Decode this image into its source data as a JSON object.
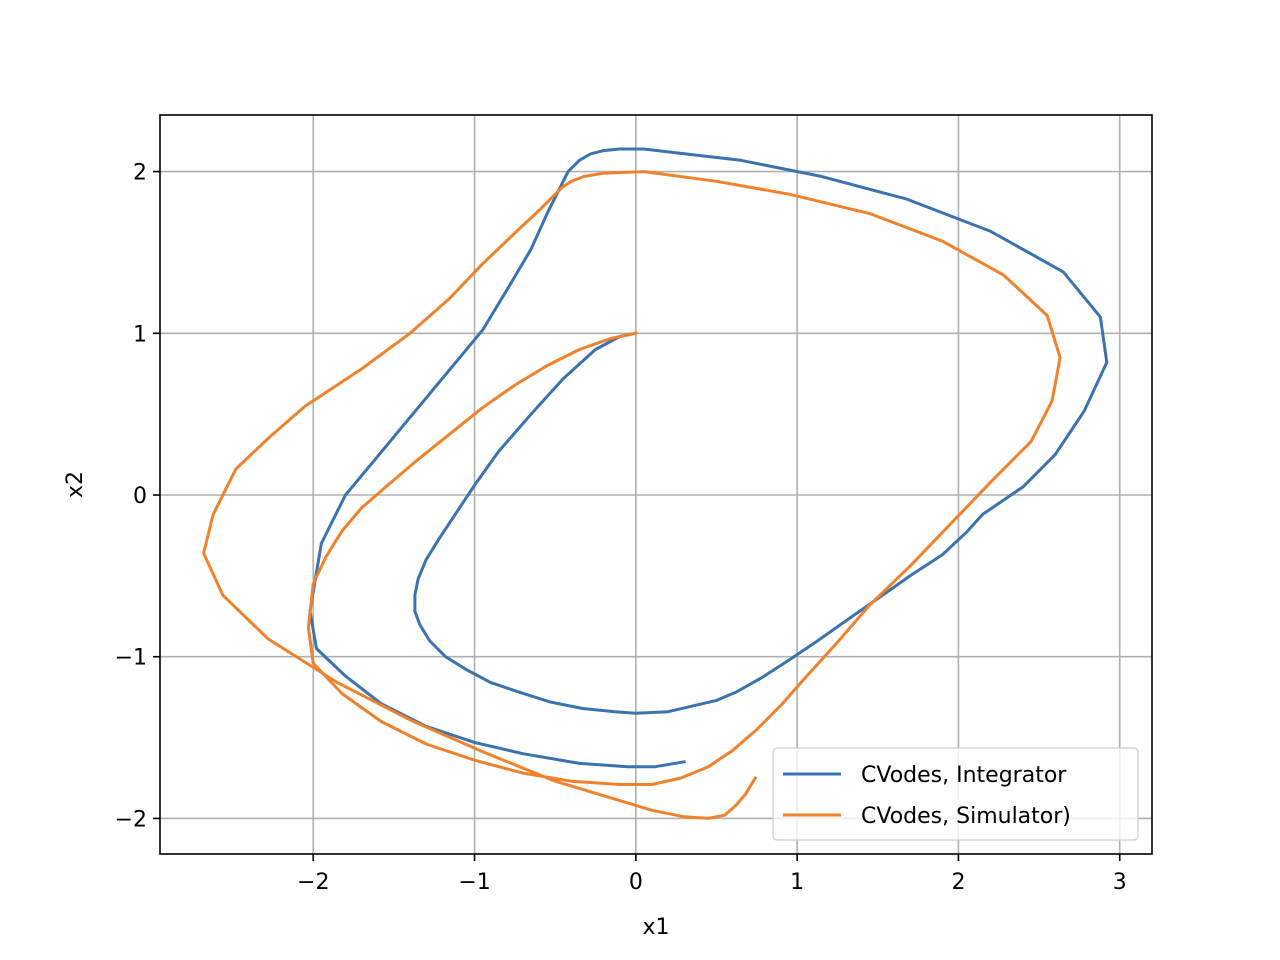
{
  "chart_data": {
    "type": "line",
    "title": "",
    "xlabel": "x1",
    "ylabel": "x2",
    "xlim": [
      -2.95,
      3.2
    ],
    "ylim": [
      -2.22,
      2.35
    ],
    "x_ticks": [
      -2,
      -1,
      0,
      1,
      2,
      3
    ],
    "x_tick_labels": [
      "−2",
      "−1",
      "0",
      "1",
      "2",
      "3"
    ],
    "y_ticks": [
      -2,
      -1,
      0,
      1,
      2
    ],
    "y_tick_labels": [
      "−2",
      "−1",
      "0",
      "1",
      "2"
    ],
    "grid": true,
    "legend_position": "lower-right",
    "series": [
      {
        "name": "CVodes, Integrator",
        "color": "#3b73b0",
        "x": [
          0.0,
          -0.1,
          -0.25,
          -0.45,
          -0.65,
          -0.85,
          -1.0,
          -1.12,
          -1.22,
          -1.3,
          -1.35,
          -1.37,
          -1.37,
          -1.34,
          -1.28,
          -1.18,
          -1.05,
          -0.9,
          -0.72,
          -0.53,
          -0.33,
          -0.13,
          0.0,
          0.2,
          0.5,
          0.62,
          0.78,
          0.95,
          1.1,
          1.3,
          1.5,
          1.7,
          1.9,
          2.05,
          2.15,
          2.4,
          2.6,
          2.78,
          2.92,
          2.88,
          2.65,
          2.2,
          1.68,
          1.15,
          0.65,
          0.3,
          0.05,
          -0.1,
          -0.2,
          -0.28,
          -0.35,
          -0.42,
          -0.47,
          -0.55,
          -0.65,
          -0.78,
          -0.95,
          -1.15,
          -1.4,
          -1.6,
          -1.8,
          -1.95,
          -2.02,
          -1.98,
          -1.8,
          -1.58,
          -1.3,
          -1.0,
          -0.7,
          -0.35,
          -0.05,
          0.12,
          0.3
        ],
        "y": [
          1.0,
          0.98,
          0.9,
          0.72,
          0.5,
          0.27,
          0.06,
          -0.12,
          -0.27,
          -0.4,
          -0.52,
          -0.62,
          -0.72,
          -0.8,
          -0.9,
          -1.0,
          -1.08,
          -1.16,
          -1.22,
          -1.28,
          -1.32,
          -1.34,
          -1.35,
          -1.34,
          -1.27,
          -1.22,
          -1.13,
          -1.02,
          -0.92,
          -0.78,
          -0.64,
          -0.5,
          -0.37,
          -0.23,
          -0.12,
          0.05,
          0.25,
          0.52,
          0.82,
          1.1,
          1.38,
          1.63,
          1.83,
          1.97,
          2.07,
          2.11,
          2.14,
          2.14,
          2.13,
          2.11,
          2.07,
          2.0,
          1.9,
          1.74,
          1.52,
          1.3,
          1.02,
          0.78,
          0.48,
          0.24,
          0.0,
          -0.3,
          -0.72,
          -0.95,
          -1.12,
          -1.29,
          -1.43,
          -1.53,
          -1.6,
          -1.66,
          -1.68,
          -1.68,
          -1.65
        ]
      },
      {
        "name": "CVodes, Simulator)",
        "color": "#f0822d",
        "x": [
          0.0,
          -0.15,
          -0.35,
          -0.55,
          -0.75,
          -0.95,
          -1.15,
          -1.35,
          -1.55,
          -1.7,
          -1.82,
          -1.92,
          -2.0,
          -2.03,
          -2.0,
          -1.82,
          -1.58,
          -1.3,
          -1.0,
          -0.7,
          -0.4,
          -0.1,
          0.1,
          0.28,
          0.45,
          0.6,
          0.75,
          0.9,
          1.05,
          1.25,
          1.45,
          1.7,
          1.95,
          2.2,
          2.45,
          2.58,
          2.63,
          2.55,
          2.28,
          1.9,
          1.45,
          0.95,
          0.5,
          0.05,
          -0.2,
          -0.32,
          -0.4,
          -0.46,
          -0.52,
          -0.6,
          -0.75,
          -0.95,
          -1.15,
          -1.4,
          -1.7,
          -2.05,
          -2.28,
          -2.48,
          -2.62,
          -2.68,
          -2.56,
          -2.28,
          -1.85,
          -1.38,
          -0.92,
          -0.5,
          -0.1,
          0.1,
          0.3,
          0.45,
          0.55,
          0.62,
          0.68,
          0.74
        ],
        "y": [
          1.0,
          0.97,
          0.9,
          0.8,
          0.68,
          0.54,
          0.38,
          0.22,
          0.05,
          -0.08,
          -0.22,
          -0.38,
          -0.55,
          -0.82,
          -1.04,
          -1.23,
          -1.4,
          -1.54,
          -1.64,
          -1.72,
          -1.77,
          -1.79,
          -1.79,
          -1.75,
          -1.68,
          -1.58,
          -1.45,
          -1.3,
          -1.13,
          -0.91,
          -0.68,
          -0.44,
          -0.18,
          0.08,
          0.33,
          0.58,
          0.85,
          1.11,
          1.36,
          1.57,
          1.74,
          1.86,
          1.94,
          2.0,
          1.99,
          1.97,
          1.94,
          1.9,
          1.84,
          1.76,
          1.62,
          1.43,
          1.22,
          1.0,
          0.78,
          0.55,
          0.35,
          0.16,
          -0.12,
          -0.36,
          -0.62,
          -0.89,
          -1.16,
          -1.4,
          -1.6,
          -1.77,
          -1.89,
          -1.95,
          -1.99,
          -2.0,
          -1.98,
          -1.92,
          -1.85,
          -1.75
        ]
      }
    ]
  }
}
